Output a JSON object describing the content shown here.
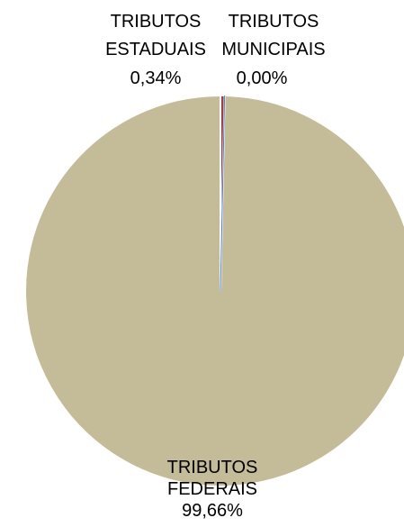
{
  "chart_data": {
    "type": "pie",
    "title": "",
    "slices": [
      {
        "label_lines": [
          "TRIBUTOS",
          "FEDERAIS"
        ],
        "percent_label": "99,66%",
        "value": 99.66,
        "color": "#c4bc98"
      },
      {
        "label_lines": [
          "TRIBUTOS",
          "ESTADUAIS"
        ],
        "percent_label": "0,34%",
        "value": 0.34,
        "color": "#a0413f"
      },
      {
        "label_lines": [
          "TRIBUTOS",
          "MUNICIPAIS"
        ],
        "percent_label": "0,00%",
        "value": 0.0,
        "color": "#4f81bd"
      }
    ]
  }
}
